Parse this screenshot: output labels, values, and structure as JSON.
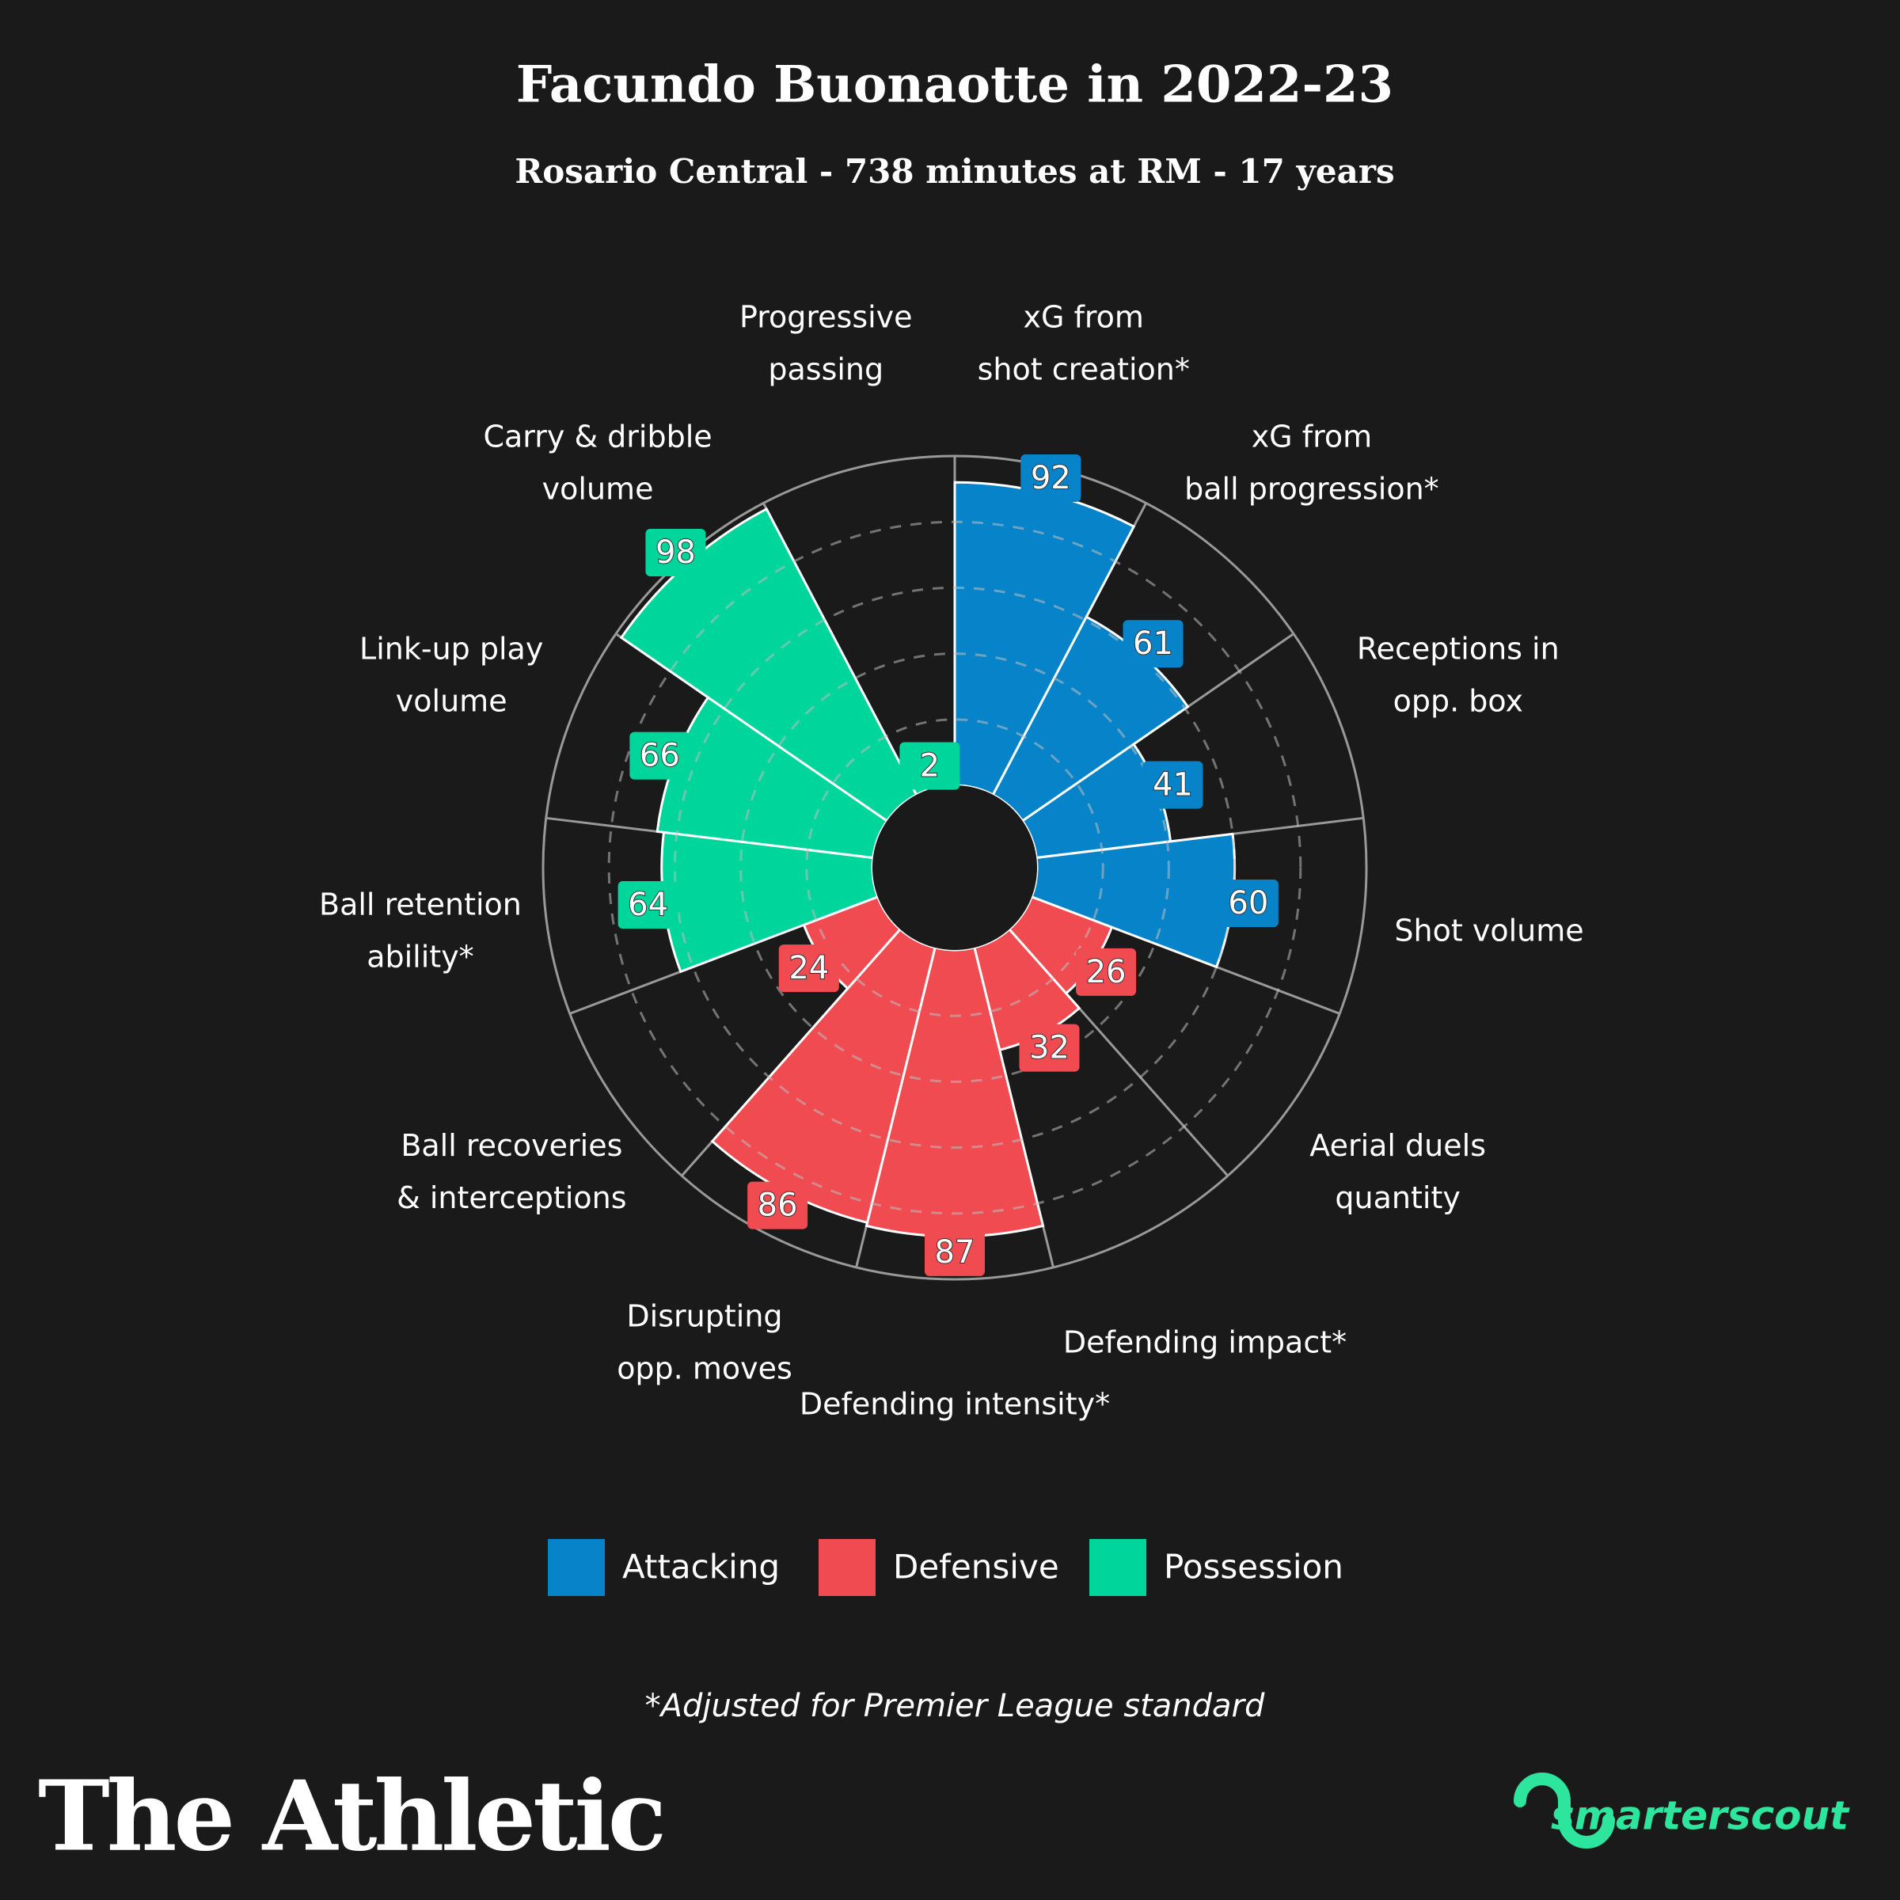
{
  "chart_data": {
    "type": "polar_bar",
    "title": "Facundo Buonaotte in 2022-23",
    "subtitle": "Rosario Central - 738 minutes at RM - 17 years",
    "series": [
      {
        "name": "Attacking",
        "color": "#0784c9",
        "categories": [
          [
            "xG from",
            "shot creation*"
          ],
          [
            "xG from",
            "ball progression*"
          ],
          [
            "Receptions in",
            "opp. box"
          ],
          [
            "Shot volume"
          ]
        ],
        "values": [
          92,
          61,
          41,
          60
        ]
      },
      {
        "name": "Defensive",
        "color": "#f04b50",
        "categories": [
          [
            "Aerial duels",
            "quantity"
          ],
          [
            "Defending impact*"
          ],
          [
            "Defending intensity*"
          ],
          [
            "Disrupting",
            "opp. moves"
          ],
          [
            "Ball recoveries",
            "& interceptions"
          ]
        ],
        "values": [
          26,
          32,
          87,
          86,
          24
        ]
      },
      {
        "name": "Possession",
        "color": "#00d69b",
        "categories": [
          [
            "Ball retention",
            "ability*"
          ],
          [
            "Link-up play",
            "volume"
          ],
          [
            "Carry & dribble",
            "volume"
          ],
          [
            "Progressive",
            "passing"
          ]
        ],
        "values": [
          64,
          66,
          98,
          2
        ]
      }
    ],
    "ylim": [
      0,
      100
    ],
    "yticks": [
      20,
      40,
      60,
      80
    ],
    "grid": true,
    "footnote": "*Adjusted for Premier League standard",
    "publisher": "The Athletic",
    "source": "smarterscout"
  }
}
